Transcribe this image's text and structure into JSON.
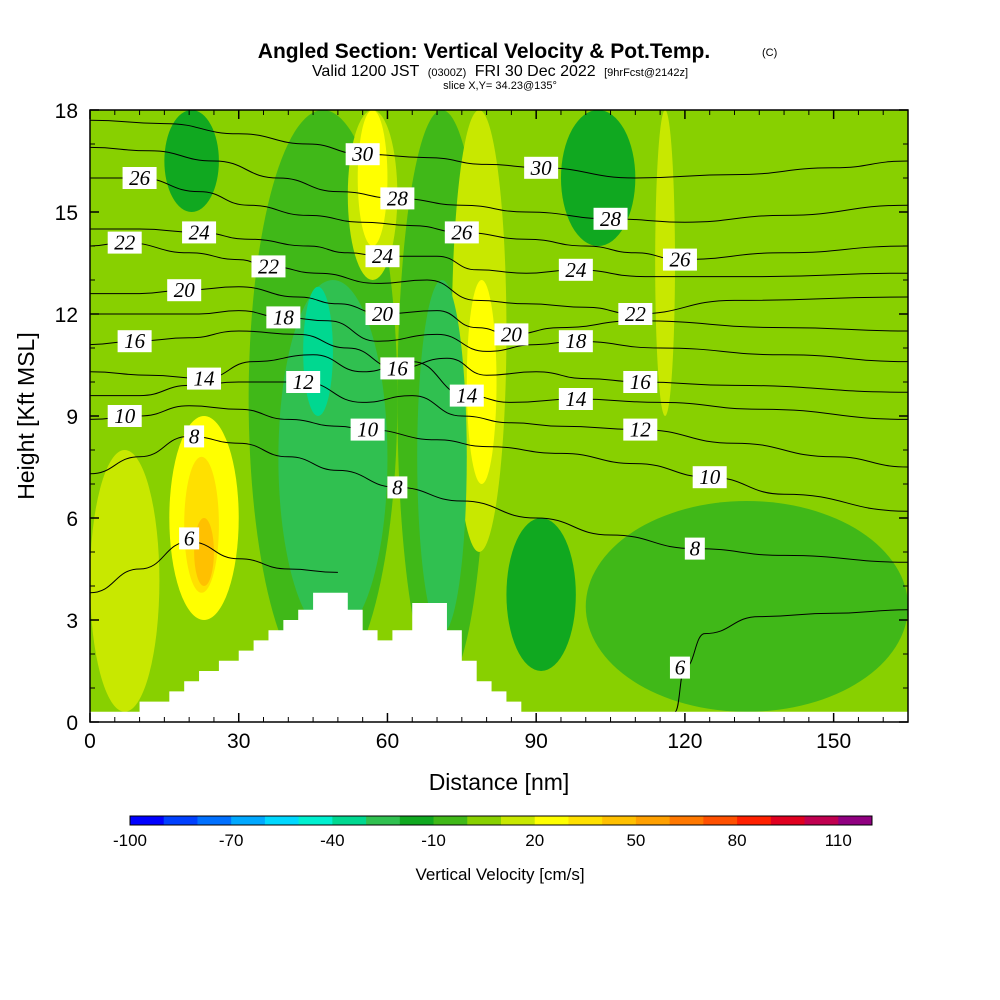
{
  "chart_data": {
    "type": "contour",
    "title": "Angled Section: Vertical Velocity & Pot.Temp.",
    "title_mark": "(C)",
    "subtitle": {
      "prefix": "Valid 1200 JST",
      "utc": "(0300Z)",
      "date": "FRI 30 Dec 2022",
      "forecast": "[9hrFcst@2142z]"
    },
    "slice_label": "slice X,Y= 34.23@135°",
    "xlabel": "Distance [nm]",
    "ylabel": "Height [Kft MSL]",
    "xlim": [
      0,
      165
    ],
    "ylim": [
      0,
      18
    ],
    "xticks": [
      "0",
      "30",
      "60",
      "90",
      "120",
      "150"
    ],
    "yticks": [
      "0",
      "3",
      "6",
      "9",
      "12",
      "15",
      "18"
    ],
    "colorbar": {
      "label": "Vertical Velocity [cm/s]",
      "min": -100,
      "max": 120,
      "step": 10,
      "tick_labels": [
        "-100",
        "-70",
        "-40",
        "-10",
        "20",
        "50",
        "80",
        "110"
      ],
      "colors": [
        "#0000ff",
        "#0040ff",
        "#0070ff",
        "#00a8ff",
        "#00d8ff",
        "#00f0d0",
        "#00d890",
        "#30c050",
        "#10a820",
        "#40b818",
        "#88d000",
        "#c8e800",
        "#ffff00",
        "#ffe000",
        "#ffc000",
        "#ffa000",
        "#ff7800",
        "#ff5000",
        "#ff2000",
        "#e00020",
        "#c00050",
        "#900080"
      ]
    },
    "terrain_steps": [
      [
        0,
        0.3
      ],
      [
        10,
        0.3
      ],
      [
        10,
        0.6
      ],
      [
        16,
        0.6
      ],
      [
        16,
        0.9
      ],
      [
        19,
        0.9
      ],
      [
        19,
        1.2
      ],
      [
        22,
        1.2
      ],
      [
        22,
        1.5
      ],
      [
        26,
        1.5
      ],
      [
        26,
        1.8
      ],
      [
        30,
        1.8
      ],
      [
        30,
        2.1
      ],
      [
        33,
        2.1
      ],
      [
        33,
        2.4
      ],
      [
        36,
        2.4
      ],
      [
        36,
        2.7
      ],
      [
        39,
        2.7
      ],
      [
        39,
        3.0
      ],
      [
        42,
        3.0
      ],
      [
        42,
        3.3
      ],
      [
        45,
        3.3
      ],
      [
        45,
        3.8
      ],
      [
        52,
        3.8
      ],
      [
        52,
        3.3
      ],
      [
        55,
        3.3
      ],
      [
        55,
        2.7
      ],
      [
        58,
        2.7
      ],
      [
        58,
        2.4
      ],
      [
        61,
        2.4
      ],
      [
        61,
        2.7
      ],
      [
        65,
        2.7
      ],
      [
        65,
        3.5
      ],
      [
        72,
        3.5
      ],
      [
        72,
        2.7
      ],
      [
        75,
        2.7
      ],
      [
        75,
        1.8
      ],
      [
        78,
        1.8
      ],
      [
        78,
        1.2
      ],
      [
        81,
        1.2
      ],
      [
        81,
        0.9
      ],
      [
        84,
        0.9
      ],
      [
        84,
        0.6
      ],
      [
        87,
        0.6
      ],
      [
        87,
        0.3
      ],
      [
        165,
        0.3
      ]
    ],
    "vertical_velocity_regions": [
      {
        "value": -40,
        "x": [
          43,
          49
        ],
        "y": [
          9,
          12.8
        ]
      },
      {
        "value": -30,
        "x": [
          38,
          60
        ],
        "y": [
          2.5,
          13
        ]
      },
      {
        "value": -30,
        "x": [
          66,
          76
        ],
        "y": [
          2.6,
          13
        ]
      },
      {
        "value": -20,
        "x": [
          15,
          26
        ],
        "y": [
          15,
          18
        ]
      },
      {
        "value": -20,
        "x": [
          95,
          110
        ],
        "y": [
          14,
          18
        ]
      },
      {
        "value": -20,
        "x": [
          84,
          98
        ],
        "y": [
          1.5,
          6
        ]
      },
      {
        "value": -10,
        "x": [
          32,
          62
        ],
        "y": [
          1,
          18
        ]
      },
      {
        "value": -10,
        "x": [
          62,
          80
        ],
        "y": [
          1,
          18
        ]
      },
      {
        "value": -10,
        "x": [
          100,
          165
        ],
        "y": [
          0.3,
          6.5
        ]
      },
      {
        "value": 0,
        "x": [
          0,
          165
        ],
        "y": [
          0.3,
          18
        ]
      },
      {
        "value": 10,
        "x": [
          0,
          14
        ],
        "y": [
          0.3,
          8
        ]
      },
      {
        "value": 10,
        "x": [
          52,
          62
        ],
        "y": [
          13,
          18
        ]
      },
      {
        "value": 10,
        "x": [
          73,
          84
        ],
        "y": [
          5,
          18
        ]
      },
      {
        "value": 10,
        "x": [
          114,
          118
        ],
        "y": [
          9,
          18
        ]
      },
      {
        "value": 20,
        "x": [
          16,
          30
        ],
        "y": [
          3,
          9
        ]
      },
      {
        "value": 20,
        "x": [
          54,
          60
        ],
        "y": [
          14,
          18
        ]
      },
      {
        "value": 20,
        "x": [
          76,
          82
        ],
        "y": [
          7,
          13
        ]
      },
      {
        "value": 30,
        "x": [
          19,
          26
        ],
        "y": [
          3.8,
          7.8
        ]
      },
      {
        "value": 40,
        "x": [
          21,
          25
        ],
        "y": [
          4,
          6
        ]
      }
    ],
    "potential_temperature_labels": [
      {
        "text": "30",
        "x": 55,
        "y": 16.7
      },
      {
        "text": "30",
        "x": 91,
        "y": 16.3
      },
      {
        "text": "28",
        "x": 62,
        "y": 15.4
      },
      {
        "text": "28",
        "x": 105,
        "y": 14.8
      },
      {
        "text": "26",
        "x": 10,
        "y": 16.0
      },
      {
        "text": "26",
        "x": 75,
        "y": 14.4
      },
      {
        "text": "26",
        "x": 119,
        "y": 13.6
      },
      {
        "text": "24",
        "x": 22,
        "y": 14.4
      },
      {
        "text": "24",
        "x": 59,
        "y": 13.7
      },
      {
        "text": "24",
        "x": 98,
        "y": 13.3
      },
      {
        "text": "22",
        "x": 7,
        "y": 14.1
      },
      {
        "text": "22",
        "x": 36,
        "y": 13.4
      },
      {
        "text": "22",
        "x": 110,
        "y": 12.0
      },
      {
        "text": "20",
        "x": 19,
        "y": 12.7
      },
      {
        "text": "20",
        "x": 59,
        "y": 12.0
      },
      {
        "text": "20",
        "x": 85,
        "y": 11.4
      },
      {
        "text": "18",
        "x": 39,
        "y": 11.9
      },
      {
        "text": "18",
        "x": 98,
        "y": 11.2
      },
      {
        "text": "16",
        "x": 9,
        "y": 11.2
      },
      {
        "text": "16",
        "x": 62,
        "y": 10.4
      },
      {
        "text": "16",
        "x": 111,
        "y": 10.0
      },
      {
        "text": "14",
        "x": 23,
        "y": 10.1
      },
      {
        "text": "14",
        "x": 76,
        "y": 9.6
      },
      {
        "text": "14",
        "x": 98,
        "y": 9.5
      },
      {
        "text": "12",
        "x": 43,
        "y": 10.0
      },
      {
        "text": "12",
        "x": 111,
        "y": 8.6
      },
      {
        "text": "10",
        "x": 7,
        "y": 9.0
      },
      {
        "text": "10",
        "x": 56,
        "y": 8.6
      },
      {
        "text": "10",
        "x": 125,
        "y": 7.2
      },
      {
        "text": "8",
        "x": 21,
        "y": 8.4
      },
      {
        "text": "8",
        "x": 62,
        "y": 6.9
      },
      {
        "text": "8",
        "x": 122,
        "y": 5.1
      },
      {
        "text": "6",
        "x": 20,
        "y": 5.4
      },
      {
        "text": "6",
        "x": 119,
        "y": 1.6
      }
    ],
    "potential_temperature_contours": [
      {
        "theta": 6,
        "points": [
          [
            0,
            3.8
          ],
          [
            10,
            4.5
          ],
          [
            20,
            5.3
          ],
          [
            30,
            4.8
          ],
          [
            40,
            4.5
          ],
          [
            50,
            4.4
          ]
        ]
      },
      {
        "theta": 6,
        "points": [
          [
            118,
            0.3
          ],
          [
            120,
            1.6
          ],
          [
            124,
            2.6
          ],
          [
            135,
            3.1
          ],
          [
            150,
            3.2
          ],
          [
            165,
            3.3
          ]
        ]
      },
      {
        "theta": 8,
        "points": [
          [
            0,
            7.3
          ],
          [
            10,
            7.8
          ],
          [
            20,
            8.4
          ],
          [
            30,
            8.2
          ],
          [
            40,
            7.8
          ],
          [
            50,
            7.4
          ],
          [
            62,
            6.9
          ],
          [
            75,
            6.5
          ],
          [
            90,
            6.0
          ],
          [
            105,
            5.5
          ],
          [
            122,
            5.1
          ],
          [
            140,
            4.9
          ],
          [
            165,
            4.7
          ]
        ]
      },
      {
        "theta": 10,
        "points": [
          [
            0,
            8.9
          ],
          [
            10,
            9.0
          ],
          [
            20,
            9.3
          ],
          [
            30,
            9.2
          ],
          [
            40,
            8.9
          ],
          [
            50,
            8.7
          ],
          [
            56,
            8.6
          ],
          [
            70,
            8.3
          ],
          [
            80,
            8.1
          ],
          [
            95,
            7.9
          ],
          [
            110,
            7.6
          ],
          [
            125,
            7.2
          ],
          [
            140,
            6.7
          ],
          [
            165,
            6.2
          ]
        ]
      },
      {
        "theta": 12,
        "points": [
          [
            0,
            9.6
          ],
          [
            10,
            9.6
          ],
          [
            20,
            9.9
          ],
          [
            30,
            10.0
          ],
          [
            43,
            10.0
          ],
          [
            55,
            9.4
          ],
          [
            65,
            9.6
          ],
          [
            75,
            9.0
          ],
          [
            85,
            8.8
          ],
          [
            95,
            8.7
          ],
          [
            111,
            8.6
          ],
          [
            130,
            8.2
          ],
          [
            150,
            7.8
          ],
          [
            165,
            7.5
          ]
        ]
      },
      {
        "theta": 14,
        "points": [
          [
            0,
            10.3
          ],
          [
            12,
            10.2
          ],
          [
            23,
            10.1
          ],
          [
            33,
            10.6
          ],
          [
            45,
            10.8
          ],
          [
            55,
            10.3
          ],
          [
            65,
            10.6
          ],
          [
            76,
            9.6
          ],
          [
            85,
            9.4
          ],
          [
            98,
            9.5
          ],
          [
            115,
            9.4
          ],
          [
            135,
            9.2
          ],
          [
            165,
            8.9
          ]
        ]
      },
      {
        "theta": 16,
        "points": [
          [
            0,
            11.1
          ],
          [
            9,
            11.2
          ],
          [
            20,
            11.3
          ],
          [
            30,
            11.5
          ],
          [
            42,
            11.4
          ],
          [
            52,
            11.0
          ],
          [
            62,
            10.4
          ],
          [
            72,
            10.7
          ],
          [
            80,
            10.2
          ],
          [
            90,
            10.3
          ],
          [
            100,
            10.1
          ],
          [
            111,
            10.0
          ],
          [
            130,
            9.9
          ],
          [
            165,
            9.7
          ]
        ]
      },
      {
        "theta": 18,
        "points": [
          [
            0,
            12.0
          ],
          [
            12,
            12.0
          ],
          [
            22,
            12.0
          ],
          [
            30,
            12.1
          ],
          [
            39,
            11.9
          ],
          [
            48,
            11.8
          ],
          [
            58,
            11.2
          ],
          [
            70,
            11.4
          ],
          [
            80,
            10.9
          ],
          [
            90,
            11.1
          ],
          [
            98,
            11.2
          ],
          [
            115,
            11.0
          ],
          [
            140,
            10.8
          ],
          [
            165,
            10.6
          ]
        ]
      },
      {
        "theta": 20,
        "points": [
          [
            0,
            12.6
          ],
          [
            10,
            12.6
          ],
          [
            19,
            12.7
          ],
          [
            30,
            12.8
          ],
          [
            42,
            12.5
          ],
          [
            50,
            12.3
          ],
          [
            59,
            12.0
          ],
          [
            70,
            12.1
          ],
          [
            78,
            11.6
          ],
          [
            85,
            11.4
          ],
          [
            95,
            11.6
          ],
          [
            110,
            11.8
          ],
          [
            140,
            11.6
          ],
          [
            165,
            11.5
          ]
        ]
      },
      {
        "theta": 22,
        "points": [
          [
            0,
            14.0
          ],
          [
            7,
            14.1
          ],
          [
            20,
            13.8
          ],
          [
            30,
            13.6
          ],
          [
            36,
            13.4
          ],
          [
            46,
            13.2
          ],
          [
            58,
            12.9
          ],
          [
            68,
            13.0
          ],
          [
            78,
            12.4
          ],
          [
            88,
            12.3
          ],
          [
            100,
            12.2
          ],
          [
            110,
            12.0
          ],
          [
            130,
            12.4
          ],
          [
            165,
            12.5
          ]
        ]
      },
      {
        "theta": 24,
        "points": [
          [
            0,
            14.5
          ],
          [
            10,
            14.5
          ],
          [
            22,
            14.4
          ],
          [
            32,
            14.2
          ],
          [
            44,
            14.0
          ],
          [
            52,
            13.8
          ],
          [
            59,
            13.7
          ],
          [
            70,
            13.7
          ],
          [
            78,
            13.3
          ],
          [
            88,
            13.2
          ],
          [
            98,
            13.3
          ],
          [
            112,
            13.1
          ],
          [
            135,
            13.1
          ],
          [
            165,
            13.2
          ]
        ]
      },
      {
        "theta": 26,
        "points": [
          [
            0,
            16.0
          ],
          [
            10,
            16.0
          ],
          [
            22,
            15.6
          ],
          [
            32,
            15.2
          ],
          [
            44,
            14.9
          ],
          [
            55,
            14.7
          ],
          [
            65,
            14.6
          ],
          [
            75,
            14.4
          ],
          [
            88,
            14.2
          ],
          [
            100,
            14.0
          ],
          [
            110,
            13.8
          ],
          [
            119,
            13.6
          ],
          [
            140,
            13.8
          ],
          [
            165,
            14.0
          ]
        ]
      },
      {
        "theta": 28,
        "points": [
          [
            0,
            16.9
          ],
          [
            12,
            16.8
          ],
          [
            25,
            16.5
          ],
          [
            38,
            16.0
          ],
          [
            50,
            15.6
          ],
          [
            62,
            15.4
          ],
          [
            75,
            15.2
          ],
          [
            88,
            15.0
          ],
          [
            105,
            14.8
          ],
          [
            120,
            14.7
          ],
          [
            140,
            14.9
          ],
          [
            165,
            15.2
          ]
        ]
      },
      {
        "theta": 30,
        "points": [
          [
            0,
            17.7
          ],
          [
            15,
            17.6
          ],
          [
            30,
            17.3
          ],
          [
            44,
            17.0
          ],
          [
            55,
            16.7
          ],
          [
            68,
            16.6
          ],
          [
            80,
            16.4
          ],
          [
            91,
            16.3
          ],
          [
            110,
            16.0
          ],
          [
            130,
            16.1
          ],
          [
            150,
            16.3
          ],
          [
            165,
            16.5
          ]
        ]
      }
    ]
  }
}
